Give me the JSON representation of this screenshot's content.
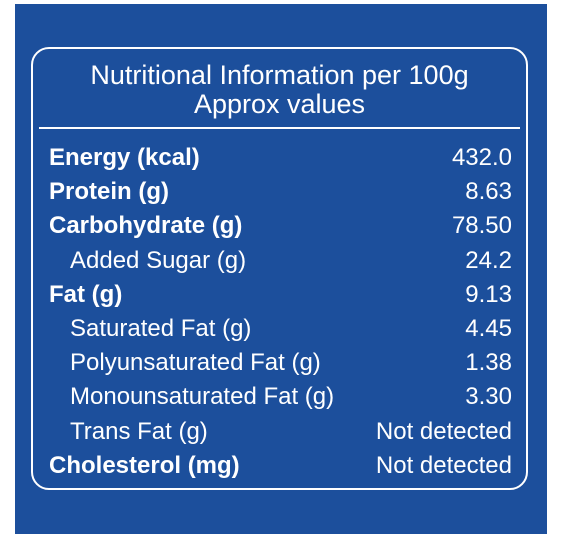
{
  "header": {
    "title": "Nutritional Information per 100g",
    "subtitle": "Approx values"
  },
  "table": {
    "rows": [
      {
        "name": "Energy (kcal)",
        "value": "432.0",
        "level": 0
      },
      {
        "name": "Protein (g)",
        "value": "8.63",
        "level": 0
      },
      {
        "name": "Carbohydrate (g)",
        "value": "78.50",
        "level": 0
      },
      {
        "name": "Added Sugar (g)",
        "value": "24.2",
        "level": 1
      },
      {
        "name": "Fat (g)",
        "value": "9.13",
        "level": 0
      },
      {
        "name": "Saturated Fat (g)",
        "value": "4.45",
        "level": 1
      },
      {
        "name": "Polyunsaturated Fat (g)",
        "value": "1.38",
        "level": 1
      },
      {
        "name": "Monounsaturated Fat (g)",
        "value": "3.30",
        "level": 1
      },
      {
        "name": "Trans Fat (g)",
        "value": "Not detected",
        "level": 1
      },
      {
        "name": "Cholesterol (mg)",
        "value": "Not detected",
        "level": 0
      }
    ]
  }
}
